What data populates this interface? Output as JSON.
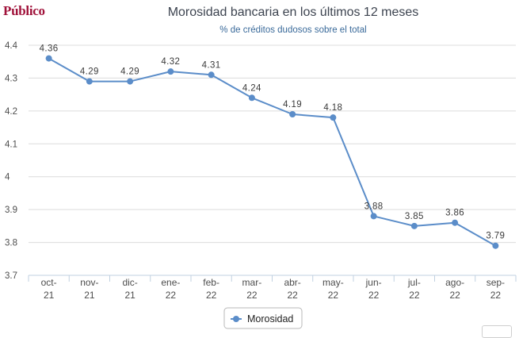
{
  "brand": {
    "name": "Público",
    "color": "#a0123a"
  },
  "chart_data": {
    "type": "line",
    "title": "Morosidad bancaria en los últimos 12 meses",
    "subtitle": "% de créditos dudosos sobre el total",
    "categories": [
      [
        "oct-",
        "21"
      ],
      [
        "nov-",
        "21"
      ],
      [
        "dic-",
        "21"
      ],
      [
        "ene-",
        "22"
      ],
      [
        "feb-",
        "22"
      ],
      [
        "mar-",
        "22"
      ],
      [
        "abr-",
        "22"
      ],
      [
        "may-",
        "22"
      ],
      [
        "jun-",
        "22"
      ],
      [
        "jul-",
        "22"
      ],
      [
        "ago-",
        "22"
      ],
      [
        "sep-",
        "22"
      ]
    ],
    "series": [
      {
        "name": "Morosidad",
        "color": "#5b8dc9",
        "values": [
          4.36,
          4.29,
          4.29,
          4.32,
          4.31,
          4.24,
          4.19,
          4.18,
          3.88,
          3.85,
          3.86,
          3.79
        ],
        "labels": [
          "4.36",
          "4.29",
          "4.29",
          "4.32",
          "4.31",
          "4.24",
          "4.19",
          "4.18",
          "3.88",
          "3.85",
          "3.86",
          "3.79"
        ]
      }
    ],
    "yticks": [
      "3.7",
      "3.8",
      "3.9",
      "4",
      "4.1",
      "4.2",
      "4.3",
      "4.4"
    ],
    "ylim": [
      3.7,
      4.4
    ],
    "grid": true,
    "legend": "bottom-center",
    "colors": {
      "grid": "#dcdcdc",
      "axis": "#c0d0e0",
      "subtitle": "#3a6a9a"
    }
  }
}
